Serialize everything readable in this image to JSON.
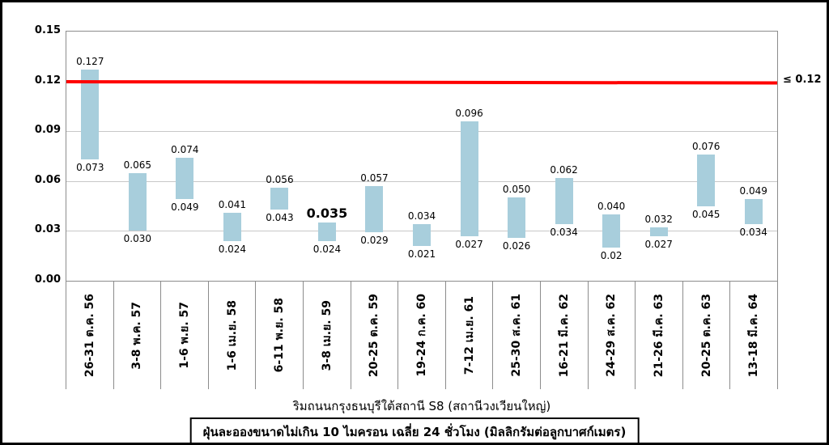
{
  "chart_data": {
    "type": "bar",
    "subtype": "floating-range-bar",
    "title": "",
    "xlabel": "ริมถนนกรุงธนบุรีใต้สถานี S8 (สถานีวงเวียนใหญ่)",
    "footer": "ฝุ่นละอองขนาดไม่เกิน 10 ไมครอน เฉลี่ย 24 ชั่วโมง (มิลลิกรัมต่อลูกบาศก์เมตร)",
    "ylim": [
      0,
      0.15
    ],
    "y_ticks": [
      "0.00",
      "0.03",
      "0.06",
      "0.09",
      "0.12",
      "0.15"
    ],
    "grid": true,
    "legend": "none",
    "bar_color": "#A8CEDC",
    "limit_line": {
      "value": 0.12,
      "label": "≤ 0.12",
      "color": "#ff0000"
    },
    "large_max_label_index": 5,
    "categories": [
      "26-31 ต.ค. 56",
      "3-8 พ.ค. 57",
      "1-6 พ.ย. 57",
      "1-6 เม.ย. 58",
      "6-11 พ.ย. 58",
      "3-8 เม.ย. 59",
      "20-25 ต.ค. 59",
      "19-24 ก.ค. 60",
      "7-12 เม.ย. 61",
      "25-30 ส.ค. 61",
      "16-21 มี.ค. 62",
      "24-29 ส.ค. 62",
      "21-26 มี.ค. 63",
      "20-25 ต.ค. 63",
      "13-18 มี.ค. 64"
    ],
    "series": [
      {
        "name": "min",
        "values": [
          0.073,
          0.03,
          0.049,
          0.024,
          0.043,
          0.024,
          0.029,
          0.021,
          0.027,
          0.026,
          0.034,
          0.02,
          0.027,
          0.045,
          0.034
        ],
        "labels": [
          "0.073",
          "0.030",
          "0.049",
          "0.024",
          "0.043",
          "0.024",
          "0.029",
          "0.021",
          "0.027",
          "0.026",
          "0.034",
          "0.02",
          "0.027",
          "0.045",
          "0.034"
        ]
      },
      {
        "name": "max",
        "values": [
          0.127,
          0.065,
          0.074,
          0.041,
          0.056,
          0.035,
          0.057,
          0.034,
          0.096,
          0.05,
          0.062,
          0.04,
          0.032,
          0.076,
          0.049
        ],
        "labels": [
          "0.127",
          "0.065",
          "0.074",
          "0.041",
          "0.056",
          "0.035",
          "0.057",
          "0.034",
          "0.096",
          "0.050",
          "0.062",
          "0.040",
          "0.032",
          "0.076",
          "0.049"
        ]
      }
    ]
  }
}
